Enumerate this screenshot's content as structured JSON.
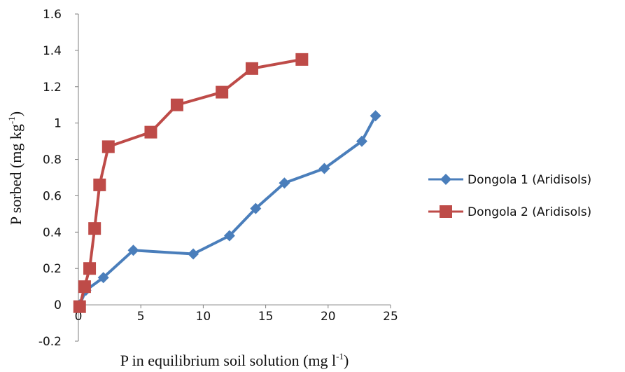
{
  "chart_data": {
    "type": "line",
    "xlabel": "P in equilibrium soil solution (mg l",
    "xlabel_sup": "-1",
    "xlabel_end": ")",
    "ylabel": "P sorbed (mg kg",
    "ylabel_sup": "-1",
    "ylabel_end": ")",
    "xlim": [
      0,
      25
    ],
    "ylim": [
      -0.2,
      1.6
    ],
    "x_ticks": [
      0,
      5,
      10,
      15,
      20,
      25
    ],
    "y_ticks": [
      -0.2,
      0,
      0.2,
      0.4,
      0.6,
      0.8,
      1,
      1.2,
      1.4,
      1.6
    ],
    "x_tick_labels": [
      "0",
      "5",
      "10",
      "15",
      "20",
      "25"
    ],
    "y_tick_labels": [
      "-0.2",
      "0",
      "0.2",
      "0.4",
      "0.6",
      "0.8",
      "1",
      "1.2",
      "1.4",
      "1.6"
    ],
    "grid": false,
    "legend_position": "right",
    "series": [
      {
        "name": "Dongola 1 (Aridisols)",
        "color": "#4a7ebb",
        "marker": "diamond",
        "x": [
          0.1,
          0.6,
          2.0,
          4.4,
          9.2,
          12.1,
          14.2,
          16.5,
          19.7,
          22.7,
          23.8
        ],
        "y": [
          0.0,
          0.08,
          0.15,
          0.3,
          0.28,
          0.38,
          0.53,
          0.67,
          0.75,
          0.9,
          1.04
        ]
      },
      {
        "name": "Dongola 2 (Aridisols)",
        "color": "#be4b48",
        "marker": "square",
        "x": [
          0.1,
          0.5,
          0.9,
          1.3,
          1.7,
          2.4,
          5.8,
          7.9,
          11.5,
          13.9,
          17.9
        ],
        "y": [
          -0.01,
          0.1,
          0.2,
          0.42,
          0.66,
          0.87,
          0.95,
          1.1,
          1.17,
          1.3,
          1.35
        ]
      }
    ]
  }
}
